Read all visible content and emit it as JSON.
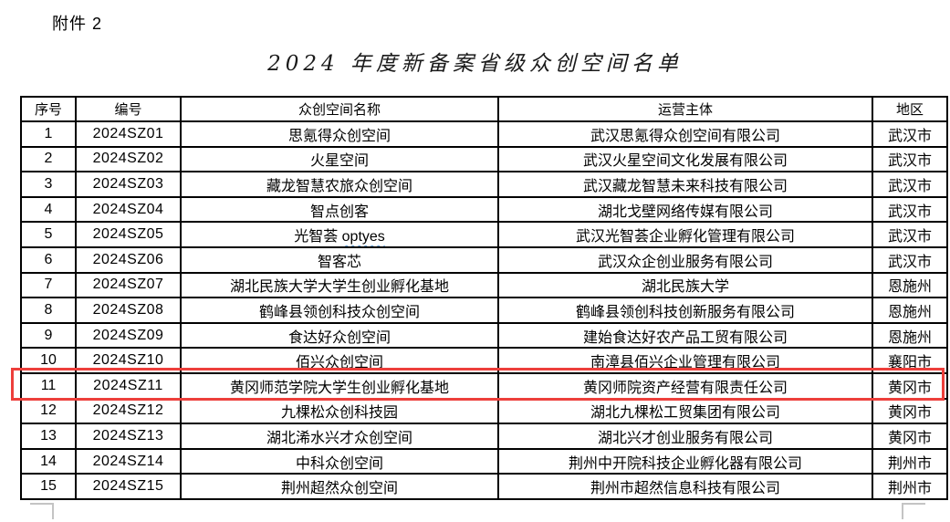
{
  "page": {
    "attachment_label": "附件 2",
    "title": "2024 年度新备案省级众创空间名单"
  },
  "table": {
    "headers": [
      "序号",
      "编号",
      "众创空间名称",
      "运营主体",
      "地区"
    ],
    "rows": [
      {
        "no": "1",
        "code": "2024SZ01",
        "name": "思氪得众创空间",
        "operator": "武汉思氪得众创空间有限公司",
        "region": "武汉市"
      },
      {
        "no": "2",
        "code": "2024SZ02",
        "name": "火星空间",
        "operator": "武汉火星空间文化发展有限公司",
        "region": "武汉市"
      },
      {
        "no": "3",
        "code": "2024SZ03",
        "name": "藏龙智慧农旅众创空间",
        "operator": "武汉藏龙智慧未来科技有限公司",
        "region": "武汉市"
      },
      {
        "no": "4",
        "code": "2024SZ04",
        "name": "智点创客",
        "operator": "湖北戈壁网络传媒有限公司",
        "region": "武汉市"
      },
      {
        "no": "5",
        "code": "2024SZ05",
        "name": "光智荟 optyes",
        "spellcheck_part": "optyes",
        "operator": "武汉光智荟企业孵化管理有限公司",
        "region": "武汉市"
      },
      {
        "no": "6",
        "code": "2024SZ06",
        "name": "智客芯",
        "operator": "武汉众企创业服务有限公司",
        "region": "武汉市"
      },
      {
        "no": "7",
        "code": "2024SZ07",
        "name": "湖北民族大学大学生创业孵化基地",
        "operator": "湖北民族大学",
        "region": "恩施州"
      },
      {
        "no": "8",
        "code": "2024SZ08",
        "name": "鹤峰县领创科技众创空间",
        "operator": "鹤峰县领创科技创新服务有限公司",
        "region": "恩施州"
      },
      {
        "no": "9",
        "code": "2024SZ09",
        "name": "食达好众创空间",
        "operator": "建始食达好农产品工贸有限公司",
        "region": "恩施州"
      },
      {
        "no": "10",
        "code": "2024SZ10",
        "name": "佰兴众创空间",
        "operator": "南漳县佰兴企业管理有限公司",
        "region": "襄阳市"
      },
      {
        "no": "11",
        "code": "2024SZ11",
        "name": "黄冈师范学院大学生创业孵化基地",
        "operator": "黄冈师院资产经营有限责任公司",
        "region": "黄冈市",
        "highlighted": true
      },
      {
        "no": "12",
        "code": "2024SZ12",
        "name": "九棵松众创科技园",
        "operator": "湖北九棵松工贸集团有限公司",
        "region": "黄冈市"
      },
      {
        "no": "13",
        "code": "2024SZ13",
        "name": "湖北浠水兴才众创空间",
        "operator": "湖北兴才创业服务有限公司",
        "region": "黄冈市"
      },
      {
        "no": "14",
        "code": "2024SZ14",
        "name": "中科众创空间",
        "operator": "荆州中开院科技企业孵化器有限公司",
        "region": "荆州市"
      },
      {
        "no": "15",
        "code": "2024SZ15",
        "name": "荆州超然众创空间",
        "operator": "荆州市超然信息科技有限公司",
        "region": "荆州市"
      }
    ]
  },
  "colors": {
    "highlight_border": "#ed3f3b",
    "spellcheck_underline": "#5b9bd5",
    "table_border": "#000000"
  }
}
